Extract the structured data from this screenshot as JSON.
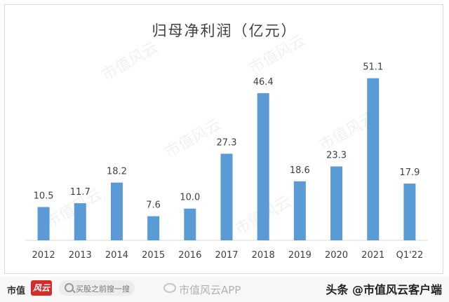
{
  "chart_data": {
    "type": "bar",
    "title": "归母净利润（亿元）",
    "categories": [
      "2012",
      "2013",
      "2014",
      "2015",
      "2016",
      "2017",
      "2018",
      "2019",
      "2020",
      "2021",
      "Q1'22"
    ],
    "values": [
      10.5,
      11.7,
      18.2,
      7.6,
      10.0,
      27.3,
      46.4,
      18.6,
      23.3,
      51.1,
      17.9
    ],
    "value_labels": [
      "10.5",
      "11.7",
      "18.2",
      "7.6",
      "10.0",
      "27.3",
      "46.4",
      "18.6",
      "23.3",
      "51.1",
      "17.9"
    ],
    "bar_color": "#5b9bd5",
    "xlabel": "",
    "ylabel": "",
    "ylim": [
      0,
      55
    ],
    "grid": false,
    "legend": "none"
  },
  "watermark": {
    "text": "市值风云"
  },
  "footer": {
    "brand": "市值",
    "brand_logo": "风云",
    "search_placeholder": "买股之前搜一搜",
    "app_watermark": "市值风云APP",
    "credit": "头条 @市值风云客户端"
  },
  "icons": [
    "search-icon",
    "weibo-icon"
  ]
}
